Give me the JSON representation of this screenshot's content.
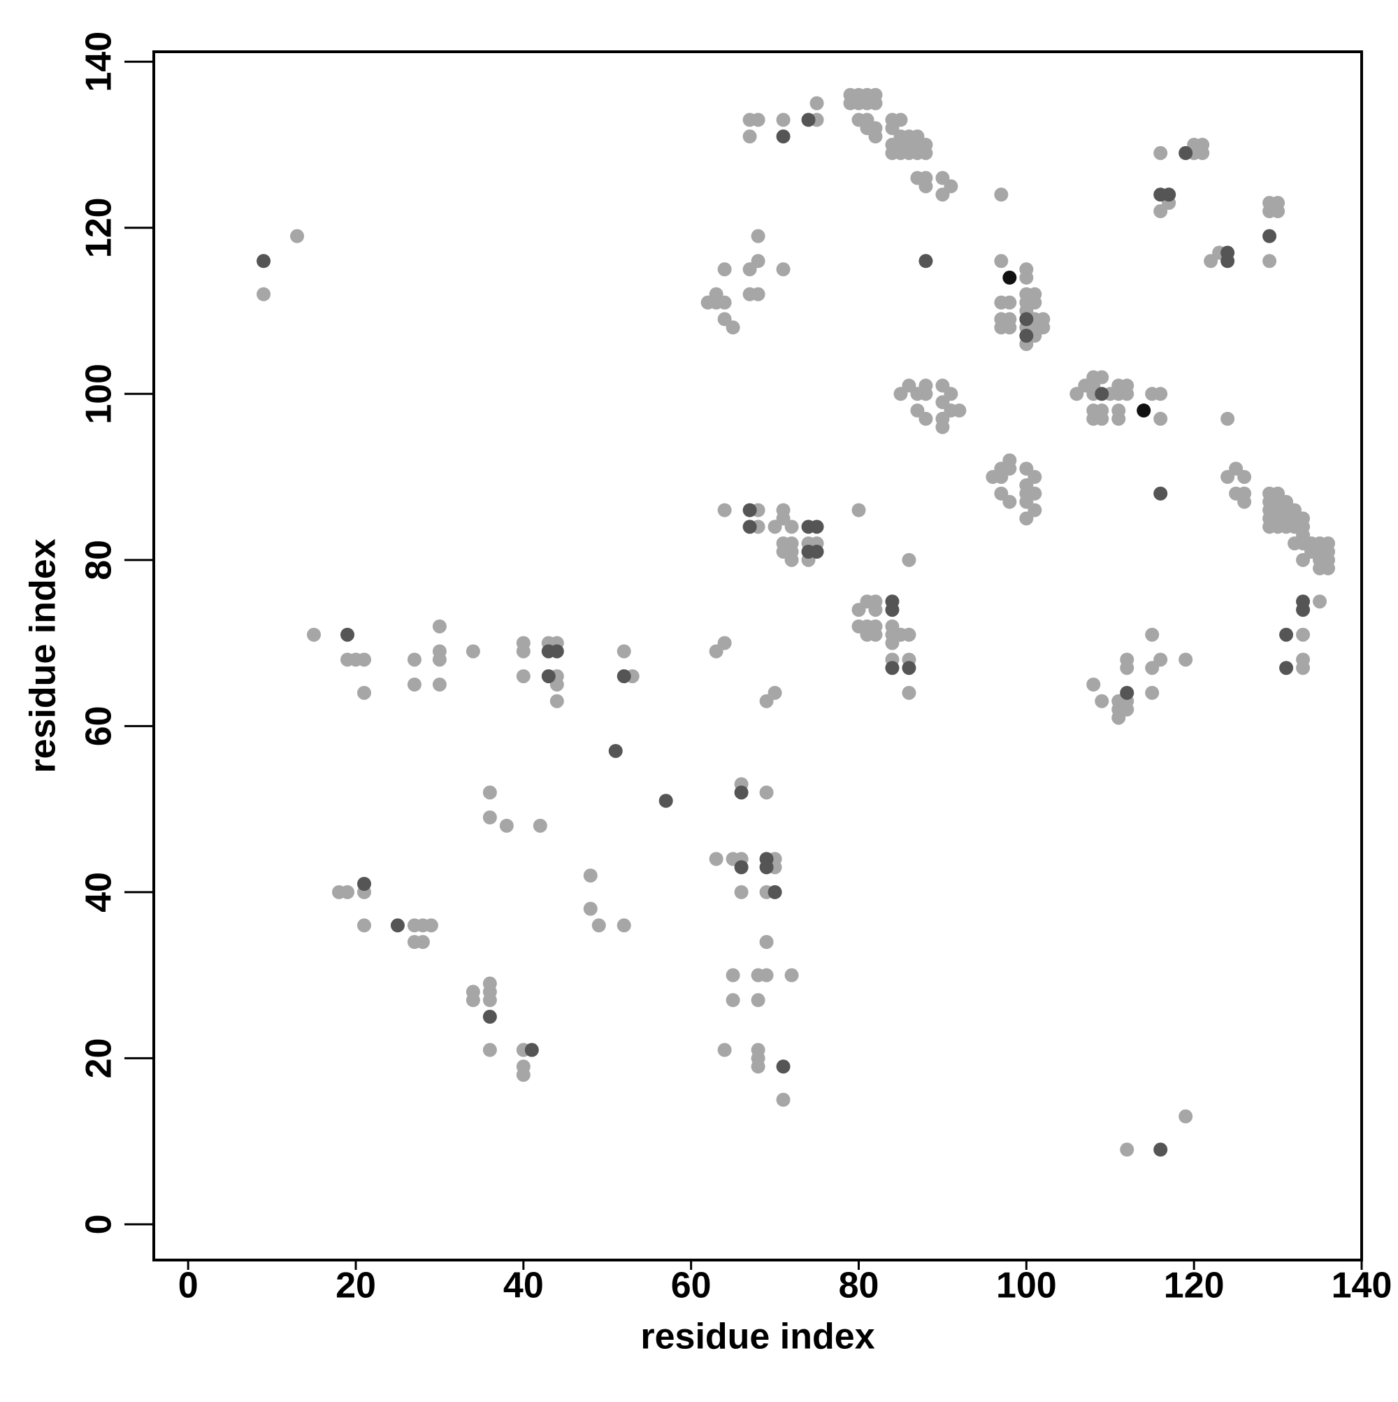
{
  "chart_data": {
    "type": "scatter",
    "xlabel": "residue index",
    "ylabel": "residue index",
    "xlim": [
      -4.1,
      140
    ],
    "ylim": [
      -4.3,
      141.2
    ],
    "xticks": [
      0,
      20,
      40,
      60,
      80,
      100,
      120,
      140
    ],
    "yticks": [
      0,
      20,
      40,
      60,
      80,
      100,
      120,
      140
    ],
    "series": [
      {
        "color": "#a6a6a6",
        "x": [
          9,
          13,
          15,
          19,
          20,
          21,
          21,
          27,
          27,
          30,
          30,
          30,
          30,
          34,
          40,
          40,
          40,
          44,
          43,
          44,
          44,
          44,
          52,
          53,
          18,
          19,
          21,
          21,
          27,
          28,
          29,
          27,
          28,
          34,
          34,
          36,
          36,
          36,
          36,
          36,
          36,
          38,
          42,
          40,
          40,
          40,
          48,
          48,
          49,
          52,
          63,
          65,
          66,
          66,
          66,
          69,
          69,
          70,
          70,
          69,
          65,
          68,
          69,
          72,
          65,
          68,
          64,
          68,
          68,
          68,
          71,
          119,
          112,
          63,
          64,
          69,
          70,
          64,
          68,
          68,
          70,
          71,
          71,
          72,
          72,
          71,
          71,
          72,
          72,
          74,
          75,
          74,
          80,
          86,
          80,
          80,
          81,
          81,
          81,
          82,
          82,
          82,
          82,
          84,
          84,
          84,
          85,
          86,
          84,
          86,
          86,
          62,
          63,
          63,
          64,
          64,
          64,
          65,
          67,
          67,
          68,
          68,
          68,
          71,
          67,
          68,
          67,
          71,
          75,
          75,
          79,
          79,
          80,
          80,
          81,
          81,
          82,
          82,
          80,
          81,
          81,
          82,
          82,
          84,
          85,
          84,
          85,
          86,
          87,
          84,
          85,
          86,
          87,
          88,
          84,
          85,
          86,
          87,
          88,
          87,
          88,
          88,
          90,
          90,
          91,
          85,
          86,
          87,
          87,
          88,
          88,
          88,
          90,
          90,
          91,
          91,
          90,
          92,
          90,
          97,
          97,
          97,
          98,
          97,
          98,
          97,
          98,
          100,
          100,
          100,
          101,
          100,
          101,
          100,
          101,
          102,
          100,
          101,
          102,
          100,
          101,
          96,
          97,
          97,
          98,
          98,
          97,
          98,
          100,
          100,
          100,
          101,
          101,
          100,
          101,
          100,
          106,
          107,
          108,
          108,
          109,
          108,
          110,
          108,
          108,
          109,
          109,
          111,
          112,
          111,
          112,
          111,
          111,
          115,
          116,
          116,
          108,
          109,
          111,
          111,
          111,
          112,
          112,
          112,
          112,
          115,
          115,
          115,
          116,
          119,
          116,
          116,
          117,
          120,
          120,
          121,
          121,
          122,
          123,
          124,
          124,
          125,
          125,
          126,
          126,
          126,
          129,
          129,
          130,
          130,
          129,
          129,
          129,
          130,
          130,
          129,
          130,
          131,
          131,
          132,
          132,
          133,
          129,
          130,
          131,
          129,
          130,
          131,
          132,
          133,
          133,
          132,
          133,
          134,
          135,
          136,
          134,
          135,
          136,
          133,
          135,
          136,
          135,
          136,
          133,
          133,
          133,
          135
        ],
        "y": [
          112,
          119,
          71,
          68,
          68,
          68,
          64,
          68,
          65,
          72,
          69,
          68,
          65,
          69,
          70,
          69,
          66,
          70,
          70,
          66,
          65,
          63,
          69,
          66,
          40,
          40,
          40,
          36,
          36,
          36,
          36,
          34,
          34,
          28,
          27,
          29,
          28,
          27,
          21,
          52,
          49,
          48,
          48,
          21,
          19,
          18,
          42,
          38,
          36,
          36,
          44,
          44,
          44,
          53,
          40,
          52,
          40,
          44,
          43,
          34,
          30,
          30,
          30,
          30,
          27,
          27,
          21,
          21,
          20,
          19,
          15,
          13,
          9,
          69,
          70,
          63,
          64,
          86,
          86,
          84,
          84,
          86,
          85,
          84,
          82,
          82,
          81,
          81,
          80,
          82,
          82,
          80,
          86,
          80,
          74,
          72,
          75,
          72,
          71,
          75,
          74,
          72,
          71,
          72,
          71,
          70,
          71,
          71,
          68,
          68,
          64,
          111,
          111,
          112,
          111,
          109,
          115,
          108,
          112,
          115,
          112,
          116,
          119,
          115,
          133,
          133,
          131,
          133,
          135,
          133,
          136,
          135,
          136,
          135,
          136,
          135,
          136,
          135,
          133,
          133,
          132,
          132,
          131,
          133,
          133,
          132,
          131,
          131,
          131,
          130,
          130,
          130,
          130,
          130,
          129,
          129,
          129,
          129,
          129,
          126,
          126,
          125,
          126,
          124,
          125,
          100,
          101,
          100,
          98,
          101,
          100,
          97,
          101,
          99,
          100,
          98,
          96,
          98,
          97,
          124,
          116,
          111,
          111,
          109,
          109,
          108,
          108,
          115,
          114,
          112,
          112,
          111,
          111,
          110,
          109,
          109,
          108,
          108,
          108,
          106,
          107,
          90,
          91,
          90,
          92,
          91,
          88,
          87,
          91,
          89,
          88,
          90,
          88,
          87,
          86,
          85,
          100,
          101,
          102,
          101,
          102,
          100,
          100,
          98,
          97,
          98,
          97,
          101,
          101,
          100,
          100,
          98,
          97,
          100,
          100,
          97,
          65,
          63,
          63,
          62,
          61,
          63,
          62,
          67,
          68,
          71,
          67,
          64,
          68,
          68,
          129,
          122,
          123,
          130,
          129,
          130,
          129,
          116,
          117,
          97,
          90,
          91,
          88,
          90,
          88,
          87,
          122,
          123,
          123,
          122,
          116,
          88,
          87,
          88,
          87,
          86,
          86,
          86,
          87,
          86,
          85,
          85,
          85,
          85,
          85,
          84,
          84,
          84,
          84,
          84,
          83,
          82,
          82,
          82,
          82,
          82,
          81,
          81,
          81,
          80,
          80,
          80,
          79,
          79,
          71,
          68,
          67,
          75
        ]
      },
      {
        "color": "#555555",
        "x": [
          9,
          19,
          43,
          44,
          43,
          52,
          51,
          57,
          25,
          21,
          36,
          41,
          71,
          66,
          66,
          69,
          69,
          70,
          67,
          67,
          74,
          75,
          75,
          74,
          84,
          84,
          84,
          86,
          71,
          74,
          88,
          100,
          100,
          109,
          116,
          116,
          117,
          119,
          124,
          124,
          129,
          131,
          131,
          133,
          133,
          116,
          112
        ],
        "y": [
          116,
          71,
          69,
          69,
          66,
          66,
          57,
          51,
          36,
          41,
          25,
          21,
          19,
          52,
          43,
          44,
          43,
          40,
          86,
          84,
          84,
          84,
          81,
          81,
          75,
          74,
          67,
          67,
          131,
          133,
          116,
          109,
          107,
          100,
          88,
          124,
          124,
          129,
          117,
          116,
          119,
          71,
          67,
          75,
          74,
          9,
          64
        ]
      },
      {
        "color": "#111111",
        "x": [
          98,
          114
        ],
        "y": [
          114,
          98
        ]
      }
    ]
  }
}
